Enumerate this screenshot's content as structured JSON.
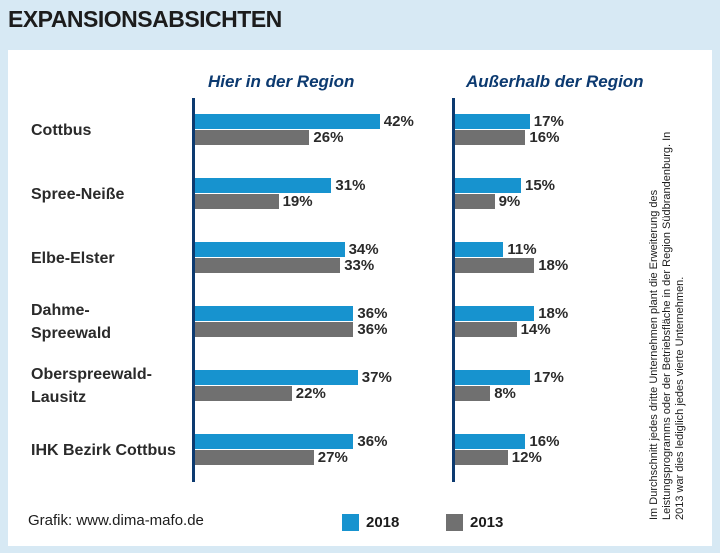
{
  "title": "EXPANSIONSABSICHTEN",
  "source": "Grafik: www.dima-mafo.de",
  "note": "Im Durchschnitt jedes dritte Unternehmen plant die Erweiterung des Leistungsprogramms oder der Betriebsfläche in der Region Südbrandenburg. In 2013 war dies lediglich jedes vierte Unternehmen.",
  "legend": {
    "y2018": "2018",
    "y2013": "2013"
  },
  "colors": {
    "y2018": "#1793cf",
    "y2013": "#707070",
    "axis": "#0c3a70",
    "background": "#d7e9f4"
  },
  "chart_data": {
    "type": "bar",
    "orientation": "horizontal",
    "title": "EXPANSIONSABSICHTEN",
    "categories": [
      "Cottbus",
      "Spree-Neiße",
      "Elbe-Elster",
      "Dahme-Spreewald",
      "Oberspreewald-Lausitz",
      "IHK Bezirk Cottbus"
    ],
    "category_display": [
      [
        "Cottbus"
      ],
      [
        "Spree-Neiße"
      ],
      [
        "Elbe-Elster"
      ],
      [
        "Dahme-",
        "Spreewald"
      ],
      [
        "Oberspreewald-",
        "Lausitz"
      ],
      [
        "IHK Bezirk Cottbus"
      ]
    ],
    "unit": "%",
    "panels": [
      {
        "name": "Hier in der Region",
        "series": [
          {
            "name": "2018",
            "values": [
              42,
              31,
              34,
              36,
              37,
              36
            ]
          },
          {
            "name": "2013",
            "values": [
              26,
              19,
              33,
              36,
              22,
              27
            ]
          }
        ]
      },
      {
        "name": "Außerhalb der Region",
        "series": [
          {
            "name": "2018",
            "values": [
              17,
              15,
              11,
              18,
              17,
              16
            ]
          },
          {
            "name": "2013",
            "values": [
              16,
              9,
              18,
              14,
              8,
              12
            ]
          }
        ]
      }
    ]
  }
}
